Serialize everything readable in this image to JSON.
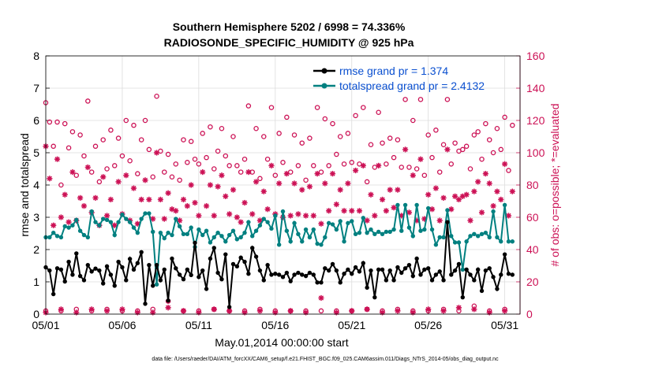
{
  "chart_data": {
    "type": "line",
    "title": "Southern Hemisphere 5202 / 6998 = 74.336%",
    "subtitle": "RADIOSONDE_SPECIFIC_HUMIDITY @ 925 hPa",
    "xlabel": "May.01,2014 00:00:00 start",
    "ylabel": "rmse and totalspread",
    "ylabel_right": "# of obs: o=possible; *=evaluated",
    "x_ticks": [
      "05/01",
      "05/06",
      "05/11",
      "05/16",
      "05/21",
      "05/26",
      "05/31"
    ],
    "x_tick_days": [
      1,
      6,
      11,
      16,
      21,
      26,
      31
    ],
    "xlim": [
      1,
      32
    ],
    "ylim": [
      0,
      8
    ],
    "y_ticks": [
      0,
      1,
      2,
      3,
      4,
      5,
      6,
      7,
      8
    ],
    "ylim_right": [
      0,
      160
    ],
    "y_ticks_right": [
      0,
      20,
      40,
      60,
      80,
      100,
      120,
      140,
      160
    ],
    "footer": "data file: /Users/raeder/DAI/ATM_forcXX/CAM6_setup/f.e21.FHIST_BGC.f09_025.CAM6assim.011/Diags_NTrS_2014-05/obs_diag_output.nc",
    "colors": {
      "rmse": "#000000",
      "totalspread": "#008080",
      "counts": "#cc1155",
      "legend_text": "#0b50d0",
      "right_axis": "#cc1155"
    },
    "series": [
      {
        "name": "rmse grand pr = 1.374",
        "x": [
          1,
          1.25,
          1.5,
          1.75,
          2,
          2.25,
          2.5,
          2.75,
          3,
          3.25,
          3.5,
          3.75,
          4,
          4.25,
          4.5,
          4.75,
          5,
          5.25,
          5.5,
          5.75,
          6,
          6.25,
          6.5,
          6.75,
          7,
          7.25,
          7.5,
          7.75,
          8,
          8.25,
          8.5,
          8.75,
          9,
          9.25,
          9.5,
          9.75,
          10,
          10.25,
          10.5,
          10.75,
          11,
          11.25,
          11.5,
          11.75,
          12,
          12.25,
          12.5,
          12.75,
          13,
          13.25,
          13.5,
          13.75,
          14,
          14.25,
          14.5,
          14.75,
          15,
          15.25,
          15.5,
          15.75,
          16,
          16.25,
          16.5,
          16.75,
          17,
          17.25,
          17.5,
          17.75,
          18,
          18.25,
          18.5,
          18.75,
          19,
          19.25,
          19.5,
          19.75,
          20,
          20.25,
          20.5,
          20.75,
          21,
          21.25,
          21.5,
          21.75,
          22,
          22.25,
          22.5,
          22.75,
          23,
          23.25,
          23.5,
          23.75,
          24,
          24.25,
          24.5,
          24.75,
          25,
          25.25,
          25.5,
          25.75,
          26,
          26.25,
          26.5,
          26.75,
          27,
          27.25,
          27.5,
          27.75,
          28,
          28.25,
          28.5,
          28.75,
          29,
          29.25,
          29.5,
          29.75,
          30,
          30.25,
          30.5,
          30.75,
          31,
          31.25,
          31.5
        ],
        "values": [
          1.45,
          1.35,
          0.62,
          1.42,
          1.38,
          1.01,
          1.62,
          1.22,
          1.88,
          1.18,
          1.05,
          1.52,
          1.32,
          1.41,
          1.35,
          0.95,
          1.48,
          1.22,
          0.88,
          1.62,
          1.45,
          1.05,
          1.71,
          1.38,
          1.58,
          1.92,
          0.32,
          1.52,
          0.88,
          1.52,
          1.05,
          1.38,
          0.42,
          1.72,
          1.42,
          1.22,
          1.08,
          1.38,
          1.21,
          2.21,
          1.15,
          1.35,
          0.78,
          1.72,
          2.05,
          1.28,
          1.08,
          1.85,
          0.22,
          1.55,
          1.48,
          1.75,
          1.62,
          1.25,
          2.05,
          1.78,
          1.35,
          1.05,
          1.52,
          1.22,
          1.25,
          1.22,
          1.15,
          1.28,
          1.02,
          1.22,
          1.28,
          1.22,
          1.18,
          1.28,
          1.22,
          0.98,
          0.98,
          1.42,
          1.35,
          1.55,
          1.35,
          0.98,
          1.25,
          1.38,
          1.25,
          1.45,
          1.32,
          1.58,
          0.82,
          1.35,
          0.52,
          1.38,
          1.38,
          1.05,
          1.35,
          1.05,
          1.45,
          1.28,
          1.42,
          1.52,
          1.18,
          1.72,
          1.22,
          1.38,
          1.42,
          1.05,
          1.22,
          1.32,
          1.05,
          2.85,
          1.22,
          1.35,
          1.55,
          0.52,
          1.38,
          1.22,
          1.05,
          1.38,
          0.72,
          1.35,
          1.42,
          1.15,
          0.78,
          1.22,
          1.85,
          1.25,
          1.22
        ]
      },
      {
        "name": "totalspread grand pr = 2.4132",
        "x": [
          1,
          1.25,
          1.5,
          1.75,
          2,
          2.25,
          2.5,
          2.75,
          3,
          3.25,
          3.5,
          3.75,
          4,
          4.25,
          4.5,
          4.75,
          5,
          5.25,
          5.5,
          5.75,
          6,
          6.25,
          6.5,
          6.75,
          7,
          7.25,
          7.5,
          7.75,
          8,
          8.25,
          8.5,
          8.75,
          9,
          9.25,
          9.5,
          9.75,
          10,
          10.25,
          10.5,
          10.75,
          11,
          11.25,
          11.5,
          11.75,
          12,
          12.25,
          12.5,
          12.75,
          13,
          13.25,
          13.5,
          13.75,
          14,
          14.25,
          14.5,
          14.75,
          15,
          15.25,
          15.5,
          15.75,
          16,
          16.25,
          16.5,
          16.75,
          17,
          17.25,
          17.5,
          17.75,
          18,
          18.25,
          18.5,
          18.75,
          19,
          19.25,
          19.5,
          19.75,
          20,
          20.25,
          20.5,
          20.75,
          21,
          21.25,
          21.5,
          21.75,
          22,
          22.25,
          22.5,
          22.75,
          23,
          23.25,
          23.5,
          23.75,
          24,
          24.25,
          24.5,
          24.75,
          25,
          25.25,
          25.5,
          25.75,
          26,
          26.25,
          26.5,
          26.75,
          27,
          27.25,
          27.5,
          27.75,
          28,
          28.25,
          28.5,
          28.75,
          29,
          29.25,
          29.5,
          29.75,
          30,
          30.25,
          30.5,
          30.75,
          31,
          31.25,
          31.5
        ],
        "values": [
          2.38,
          2.38,
          2.52,
          2.42,
          2.38,
          2.72,
          2.68,
          2.75,
          2.92,
          2.58,
          2.45,
          2.38,
          3.18,
          2.85,
          2.75,
          2.95,
          2.92,
          2.85,
          2.45,
          2.85,
          3.08,
          2.95,
          2.85,
          2.68,
          2.52,
          2.95,
          3.12,
          3.12,
          2.55,
          0.92,
          2.52,
          2.35,
          2.52,
          2.45,
          2.95,
          2.72,
          2.48,
          2.48,
          2.68,
          2.08,
          2.62,
          2.45,
          2.58,
          2.22,
          2.38,
          2.52,
          2.42,
          2.25,
          2.45,
          2.58,
          2.32,
          2.38,
          2.52,
          2.85,
          2.42,
          2.58,
          2.75,
          2.95,
          2.85,
          2.65,
          3.05,
          2.15,
          3.18,
          2.58,
          2.25,
          2.82,
          2.48,
          2.25,
          2.62,
          2.38,
          2.62,
          2.18,
          2.15,
          2.38,
          2.82,
          2.78,
          2.62,
          2.88,
          2.25,
          2.82,
          2.88,
          2.48,
          2.52,
          2.98,
          2.52,
          2.62,
          2.48,
          2.55,
          2.48,
          2.55,
          2.55,
          2.62,
          3.38,
          2.58,
          3.38,
          2.68,
          2.42,
          3.38,
          2.58,
          2.62,
          3.28,
          2.62,
          2.15,
          2.38,
          2.38,
          3.22,
          2.42,
          2.22,
          2.22,
          1.38,
          2.25,
          2.42,
          2.48,
          2.42,
          2.48,
          2.52,
          2.38,
          3.18,
          2.38,
          2.25,
          3.38,
          2.25,
          2.25
        ]
      },
      {
        "name": "possible obs count",
        "axis": "right",
        "marker": "o",
        "x": [
          1,
          1.25,
          1.5,
          1.75,
          2,
          2.25,
          2.5,
          2.75,
          3,
          3.25,
          3.5,
          3.75,
          4,
          4.25,
          4.5,
          4.75,
          5,
          5.25,
          5.5,
          5.75,
          6,
          6.25,
          6.5,
          6.75,
          7,
          7.25,
          7.5,
          7.75,
          8,
          8.25,
          8.5,
          8.75,
          9,
          9.25,
          9.5,
          9.75,
          10,
          10.25,
          10.5,
          10.75,
          11,
          11.25,
          11.5,
          11.75,
          12,
          12.25,
          12.5,
          12.75,
          13,
          13.25,
          13.5,
          13.75,
          14,
          14.25,
          14.5,
          14.75,
          15,
          15.25,
          15.5,
          15.75,
          16,
          16.25,
          16.5,
          16.75,
          17,
          17.25,
          17.5,
          17.75,
          18,
          18.25,
          18.5,
          18.75,
          19,
          19.25,
          19.5,
          19.75,
          20,
          20.25,
          20.5,
          20.75,
          21,
          21.25,
          21.5,
          21.75,
          22,
          22.25,
          22.5,
          22.75,
          23,
          23.25,
          23.5,
          23.75,
          24,
          24.25,
          24.5,
          24.75,
          25,
          25.25,
          25.5,
          25.75,
          26,
          26.25,
          26.5,
          26.75,
          27,
          27.25,
          27.5,
          27.75,
          28,
          28.25,
          28.5,
          28.75,
          29,
          29.25,
          29.5,
          29.75,
          30,
          30.25,
          30.5,
          30.75,
          31,
          31.25,
          31.5
        ],
        "values": [
          131,
          119,
          104,
          119,
          80,
          118,
          103,
          113,
          86,
          111,
          98,
          132,
          88,
          104,
          82,
          108,
          90,
          114,
          92,
          109,
          98,
          120,
          95,
          117,
          87,
          108,
          120,
          102,
          85,
          135,
          101,
          88,
          99,
          85,
          93,
          83,
          108,
          94,
          107,
          96,
          93,
          112,
          97,
          116,
          90,
          101,
          115,
          98,
          92,
          110,
          92,
          88,
          96,
          129,
          88,
          115,
          84,
          110,
          96,
          128,
          86,
          112,
          94,
          122,
          88,
          111,
          92,
          106,
          83,
          109,
          92,
          128,
          88,
          121,
          92,
          118,
          99,
          110,
          93,
          112,
          94,
          123,
          93,
          128,
          82,
          105,
          91,
          125,
          106,
          93,
          109,
          97,
          108,
          91,
          133,
          91,
          120,
          90,
          133,
          86,
          111,
          97,
          114,
          88,
          105,
          133,
          93,
          106,
          101,
          102,
          104,
          90,
          111,
          113,
          96,
          118,
          108,
          100,
          115,
          102,
          122,
          89,
          117
        ]
      },
      {
        "name": "evaluated obs count",
        "axis": "right",
        "marker": "*",
        "x": [
          1,
          1.25,
          1.5,
          1.75,
          2,
          2.25,
          2.5,
          2.75,
          3,
          3.25,
          3.5,
          3.75,
          4,
          4.25,
          4.5,
          4.75,
          5,
          5.25,
          5.5,
          5.75,
          6,
          6.25,
          6.5,
          6.75,
          7,
          7.25,
          7.5,
          7.75,
          8,
          8.25,
          8.5,
          8.75,
          9,
          9.25,
          9.5,
          9.75,
          10,
          10.25,
          10.5,
          10.75,
          11,
          11.25,
          11.5,
          11.75,
          12,
          12.25,
          12.5,
          12.75,
          13,
          13.25,
          13.5,
          13.75,
          14,
          14.25,
          14.5,
          14.75,
          15,
          15.25,
          15.5,
          15.75,
          16,
          16.25,
          16.5,
          16.75,
          17,
          17.25,
          17.5,
          17.75,
          18,
          18.25,
          18.5,
          18.75,
          19,
          19.25,
          19.5,
          19.75,
          20,
          20.25,
          20.5,
          20.75,
          21,
          21.25,
          21.5,
          21.75,
          22,
          22.25,
          22.5,
          22.75,
          23,
          23.25,
          23.5,
          23.75,
          24,
          24.25,
          24.5,
          24.75,
          25,
          25.25,
          25.5,
          25.75,
          26,
          26.25,
          26.5,
          26.75,
          27,
          27.25,
          27.5,
          27.75,
          28,
          28.25,
          28.5,
          28.75,
          29,
          29.25,
          29.5,
          29.75,
          30,
          30.25,
          30.5,
          30.75,
          31,
          31.25,
          31.5
        ],
        "values": [
          104,
          84,
          55,
          96,
          60,
          74,
          57,
          88,
          58,
          72,
          67,
          91,
          63,
          72,
          55,
          85,
          61,
          71,
          55,
          82,
          62,
          86,
          58,
          78,
          56,
          71,
          83,
          71,
          59,
          100,
          71,
          59,
          75,
          65,
          64,
          58,
          71,
          67,
          80,
          69,
          61,
          88,
          67,
          80,
          61,
          79,
          86,
          73,
          62,
          77,
          60,
          57,
          69,
          88,
          62,
          82,
          58,
          76,
          65,
          92,
          62,
          81,
          60,
          87,
          61,
          81,
          62,
          77,
          61,
          79,
          61,
          87,
          56,
          81,
          64,
          87,
          68,
          77,
          64,
          81,
          64,
          89,
          64,
          92,
          58,
          74,
          61,
          92,
          71,
          64,
          77,
          66,
          77,
          61,
          102,
          63,
          86,
          58,
          96,
          59,
          74,
          65,
          78,
          58,
          72,
          102,
          65,
          73,
          71,
          73,
          74,
          58,
          76,
          82,
          63,
          87,
          81,
          67,
          76,
          71,
          93,
          61,
          76
        ]
      }
    ],
    "counts_low": {
      "x": [
        1,
        2,
        3,
        4,
        5,
        6,
        7,
        8,
        9,
        10,
        11,
        12,
        13,
        14,
        15,
        16,
        17,
        18,
        19,
        20,
        21,
        22,
        23,
        24,
        25,
        26,
        27,
        28,
        29,
        30,
        31
      ],
      "possible_values": [
        2,
        2,
        3,
        2,
        3,
        2,
        2,
        3,
        8,
        2,
        2,
        3,
        2,
        2,
        3,
        2,
        2,
        2,
        2,
        2,
        2,
        3,
        2,
        3,
        2,
        2,
        3,
        2,
        5,
        2,
        3
      ],
      "evaluated_values": [
        1,
        3,
        1,
        3,
        2,
        3,
        1,
        1,
        4,
        2,
        1,
        3,
        2,
        1,
        2,
        1,
        2,
        1,
        10,
        1,
        2,
        3,
        1,
        2,
        1,
        3,
        2,
        4,
        3,
        1,
        2
      ]
    }
  },
  "legend": {
    "rmse": "rmse grand pr = 1.374",
    "totalspread": "totalspread grand pr = 2.4132"
  }
}
